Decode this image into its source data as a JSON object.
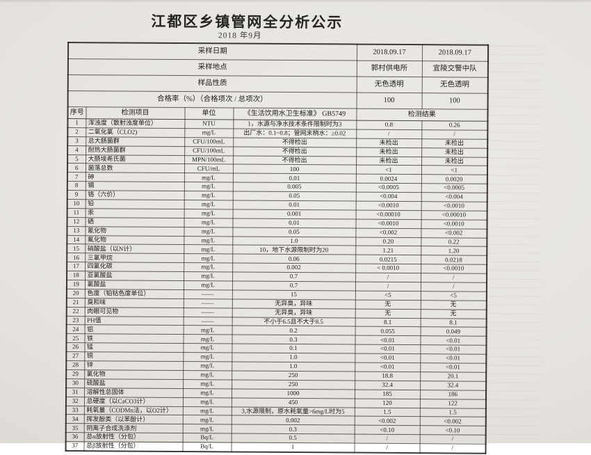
{
  "doc": {
    "title": "江都区乡镇管网全分析公示",
    "subtitle": "2018 年9月"
  },
  "table": {
    "info_rows": [
      {
        "label": "采样日期",
        "values": [
          "2018.09.17",
          "2018.09.17"
        ]
      },
      {
        "label": "采样地点",
        "values": [
          "郭村供电所",
          "宜陵交警中队"
        ]
      },
      {
        "label": "样品性质",
        "values": [
          "无色透明",
          "无色透明"
        ]
      },
      {
        "label": "合格率（%）（合格项次 / 总项次）",
        "values": [
          "100",
          "100"
        ]
      }
    ],
    "columns": {
      "no": "序号",
      "item": "检测项目",
      "unit": "单位",
      "standard": "《生活饮用水卫生标准》 GB5749",
      "result": "检测结果"
    },
    "rows": [
      {
        "no": "1",
        "item": "浑浊度（散射浊度单位）",
        "unit": "NTU",
        "standard": "1，水源与净水技术条件限制时为3",
        "r1": "0.8",
        "r2": "0.26"
      },
      {
        "no": "2",
        "item": "二氧化氯（CLO2)",
        "unit": "mg/L",
        "standard": "出厂水：0.1~0.8；管网末梢水：≥0.02",
        "r1": "/",
        "r2": "/"
      },
      {
        "no": "3",
        "item": "总大肠菌群",
        "unit": "CFU/100mL",
        "standard": "不得检出",
        "r1": "未检出",
        "r2": "未检出"
      },
      {
        "no": "4",
        "item": "耐热大肠菌群",
        "unit": "CFU/100mL",
        "standard": "不得检出",
        "r1": "未检出",
        "r2": "未检出"
      },
      {
        "no": "5",
        "item": "大肠埃希氏菌",
        "unit": "MPN/100mL",
        "standard": "不得检出",
        "r1": "未检出",
        "r2": "未检出"
      },
      {
        "no": "6",
        "item": "菌落总数",
        "unit": "CFU/mL",
        "standard": "100",
        "r1": "<1",
        "r2": "<1"
      },
      {
        "no": "7",
        "item": "砷",
        "unit": "mg/L",
        "standard": "0.01",
        "r1": "0.0024",
        "r2": "0.0020"
      },
      {
        "no": "8",
        "item": "镉",
        "unit": "mg/L",
        "standard": "0.005",
        "r1": "<0.0005",
        "r2": "<0.0005"
      },
      {
        "no": "9",
        "item": "铬（六价）",
        "unit": "mg/L",
        "standard": "0.05",
        "r1": "<0.004",
        "r2": "<0.004"
      },
      {
        "no": "10",
        "item": "铅",
        "unit": "mg/L",
        "standard": "0.01",
        "r1": "<0.0010",
        "r2": "<0.0010"
      },
      {
        "no": "11",
        "item": "汞",
        "unit": "mg/L",
        "standard": "0.001",
        "r1": "<0.00010",
        "r2": "<0.00010"
      },
      {
        "no": "12",
        "item": "硒",
        "unit": "mg/L",
        "standard": "0.01",
        "r1": "<0.0010",
        "r2": "<0.0010"
      },
      {
        "no": "13",
        "item": "氰化物",
        "unit": "mg/L",
        "standard": "0.05",
        "r1": "<0.002",
        "r2": "<0.002"
      },
      {
        "no": "14",
        "item": "氟化物",
        "unit": "mg/L",
        "standard": "1.0",
        "r1": "0.20",
        "r2": "0.22"
      },
      {
        "no": "15",
        "item": "硝酸盐（以N计）",
        "unit": "mg/L",
        "standard": "10，地下水源限制时为20",
        "r1": "1.21",
        "r2": "1.20"
      },
      {
        "no": "16",
        "item": "三氯甲烷",
        "unit": "mg/L",
        "standard": "0.06",
        "r1": "0.0215",
        "r2": "0.0218"
      },
      {
        "no": "17",
        "item": "四氯化碳",
        "unit": "mg/L",
        "standard": "0.002",
        "r1": "< 0.0010",
        "r2": "<0.0010"
      },
      {
        "no": "18",
        "item": "亚氯酸盐",
        "unit": "mg/L",
        "standard": "0.7",
        "r1": "/",
        "r2": "/"
      },
      {
        "no": "19",
        "item": "氯酸盐",
        "unit": "mg/L",
        "standard": "0.7",
        "r1": "/",
        "r2": "/"
      },
      {
        "no": "20",
        "item": "色度（铂钴色度单位）",
        "unit": "——",
        "standard": "15",
        "r1": "<5",
        "r2": "<5"
      },
      {
        "no": "21",
        "item": "臭和味",
        "unit": "——",
        "standard": "无异臭，异味",
        "r1": "无",
        "r2": "无"
      },
      {
        "no": "22",
        "item": "肉眼可见物",
        "unit": "——",
        "standard": "无异臭，异味",
        "r1": "无",
        "r2": "无"
      },
      {
        "no": "23",
        "item": "PH值",
        "unit": "——",
        "standard": "不小于6.5且不大于8.5",
        "r1": "8.1",
        "r2": "8.1"
      },
      {
        "no": "24",
        "item": "铝",
        "unit": "mg/L",
        "standard": "0.2",
        "r1": "0.055",
        "r2": "0.049"
      },
      {
        "no": "25",
        "item": "铁",
        "unit": "mg/L",
        "standard": "0.3",
        "r1": "<0.01",
        "r2": "<0.01"
      },
      {
        "no": "26",
        "item": "锰",
        "unit": "mg/L",
        "standard": "0.1",
        "r1": "<0.01",
        "r2": "<0.01"
      },
      {
        "no": "27",
        "item": "铜",
        "unit": "mg/L",
        "standard": "1.0",
        "r1": "<0.01",
        "r2": "<0.01"
      },
      {
        "no": "28",
        "item": "锌",
        "unit": "mg/L",
        "standard": "1.0",
        "r1": "<0.01",
        "r2": "<0.01"
      },
      {
        "no": "29",
        "item": "氯化物",
        "unit": "mg/L",
        "standard": "250",
        "r1": "18.8",
        "r2": "20.1"
      },
      {
        "no": "30",
        "item": "硫酸盐",
        "unit": "mg/L",
        "standard": "250",
        "r1": "32.4",
        "r2": "32.4"
      },
      {
        "no": "31",
        "item": "溶解性总固体",
        "unit": "mg/L",
        "standard": "1000",
        "r1": "185",
        "r2": "186"
      },
      {
        "no": "32",
        "item": "总硬度（以CaCO3计）",
        "unit": "mg/L",
        "standard": "450",
        "r1": "120",
        "r2": "122"
      },
      {
        "no": "33",
        "item": "耗氧量（CODMn法，以O2计）",
        "unit": "mg/L",
        "standard": "3,水源限制，原水耗氧量>6mg/L时为5",
        "r1": "1.5",
        "r2": "1.5"
      },
      {
        "no": "34",
        "item": "挥发酚类（以苯酚计）",
        "unit": "mg/L",
        "standard": "0.002",
        "r1": "<0.002",
        "r2": "<0.002"
      },
      {
        "no": "35",
        "item": "阴离子合成洗涤剂",
        "unit": "mg/L",
        "standard": "0.3",
        "r1": "<0.10",
        "r2": "<0.10"
      },
      {
        "no": "36",
        "item": "总α放射性（分包）",
        "unit": "Bq/L",
        "standard": "0.5",
        "r1": "/",
        "r2": "/"
      },
      {
        "no": "37",
        "item": "总β放射性（分包）",
        "unit": "Bq/L",
        "standard": "1",
        "r1": "/",
        "r2": "/"
      }
    ]
  }
}
